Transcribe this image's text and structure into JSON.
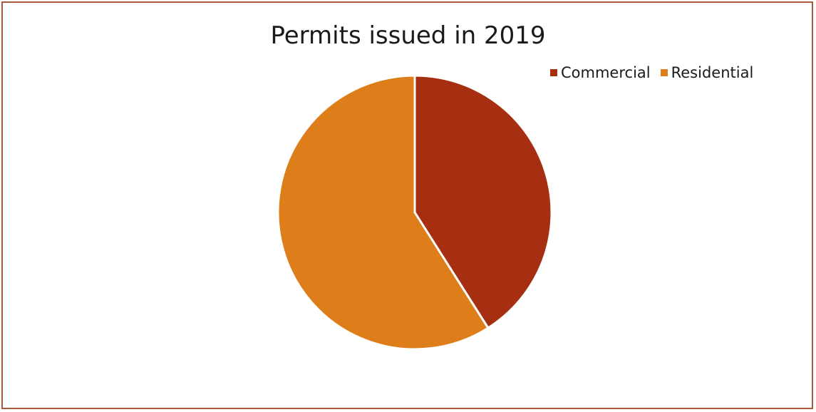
{
  "chart_data": {
    "type": "pie",
    "title": "Permits issued in 2019",
    "categories": [
      "Commercial",
      "Residential"
    ],
    "values": [
      41,
      59
    ],
    "colors": [
      "#a52f10",
      "#dd7e1a"
    ],
    "legend_position": "top-right"
  }
}
